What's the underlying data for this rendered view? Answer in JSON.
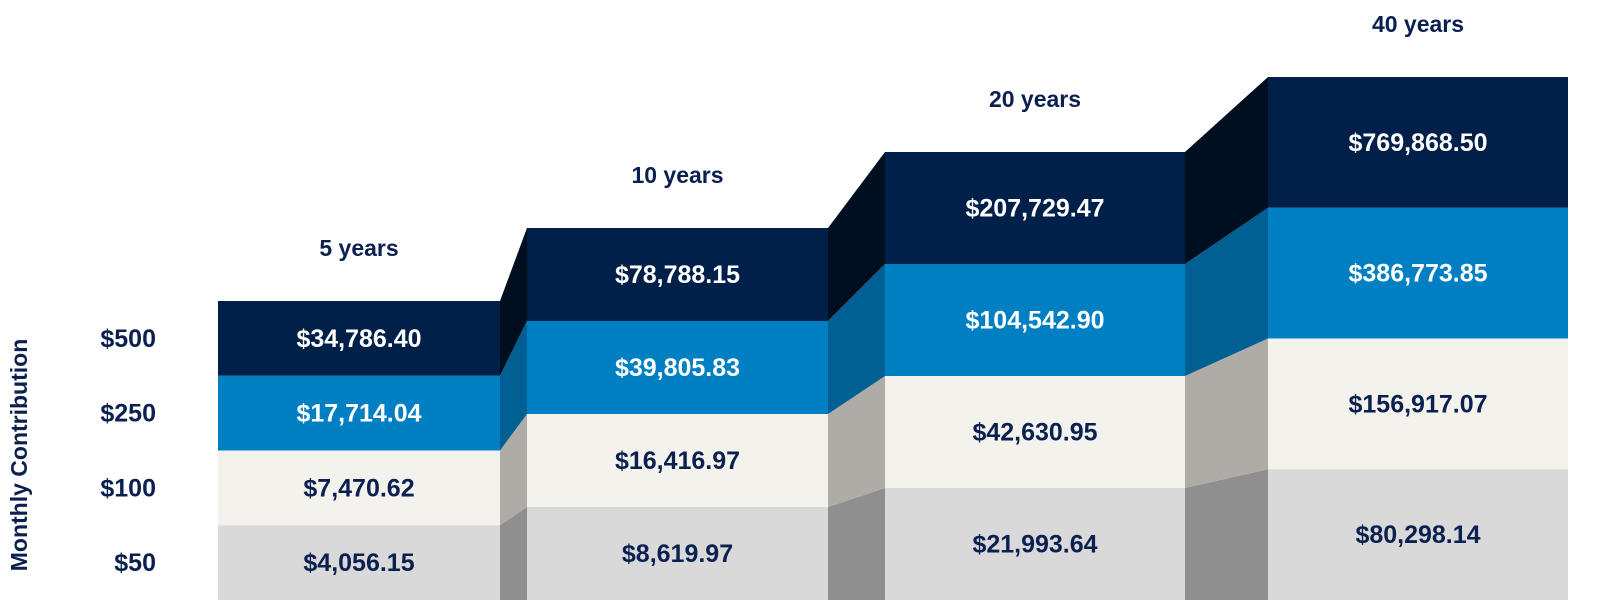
{
  "chart_data": {
    "type": "bar",
    "subtype": "stacked-3d-step",
    "title": "",
    "ylabel": "Monthly Contribution",
    "xlabel": "",
    "categories": [
      "5 years",
      "10 years",
      "20 years",
      "40 years"
    ],
    "series": [
      {
        "name": "$50",
        "values": [
          4056.15,
          8619.97,
          21993.64,
          80298.14
        ],
        "labels": [
          "$4,056.15",
          "$8,619.97",
          "$21,993.64",
          "$80,298.14"
        ],
        "color": "#d9d9d9",
        "side_color": "#8f8f8f",
        "text_color": "#0a2050"
      },
      {
        "name": "$100",
        "values": [
          7470.62,
          16416.97,
          42630.95,
          156917.07
        ],
        "labels": [
          "$7,470.62",
          "$16,416.97",
          "$42,630.95",
          "$156,917.07"
        ],
        "color": "#f4f2ed",
        "side_color": "#afaca7",
        "text_color": "#0a2050"
      },
      {
        "name": "$250",
        "values": [
          17714.04,
          39805.83,
          104542.9,
          386773.85
        ],
        "labels": [
          "$17,714.04",
          "$39,805.83",
          "$104,542.90",
          "$386,773.85"
        ],
        "color": "#0080c3",
        "side_color": "#006094",
        "text_color": "#ffffff"
      },
      {
        "name": "$500",
        "values": [
          34786.4,
          78788.15,
          207729.47,
          769868.5
        ],
        "labels": [
          "$34,786.40",
          "$78,788.15",
          "$207,729.47",
          "$769,868.50"
        ],
        "color": "#00204a",
        "side_color": "#000f1f",
        "text_color": "#ffffff"
      }
    ],
    "legend": "left"
  }
}
